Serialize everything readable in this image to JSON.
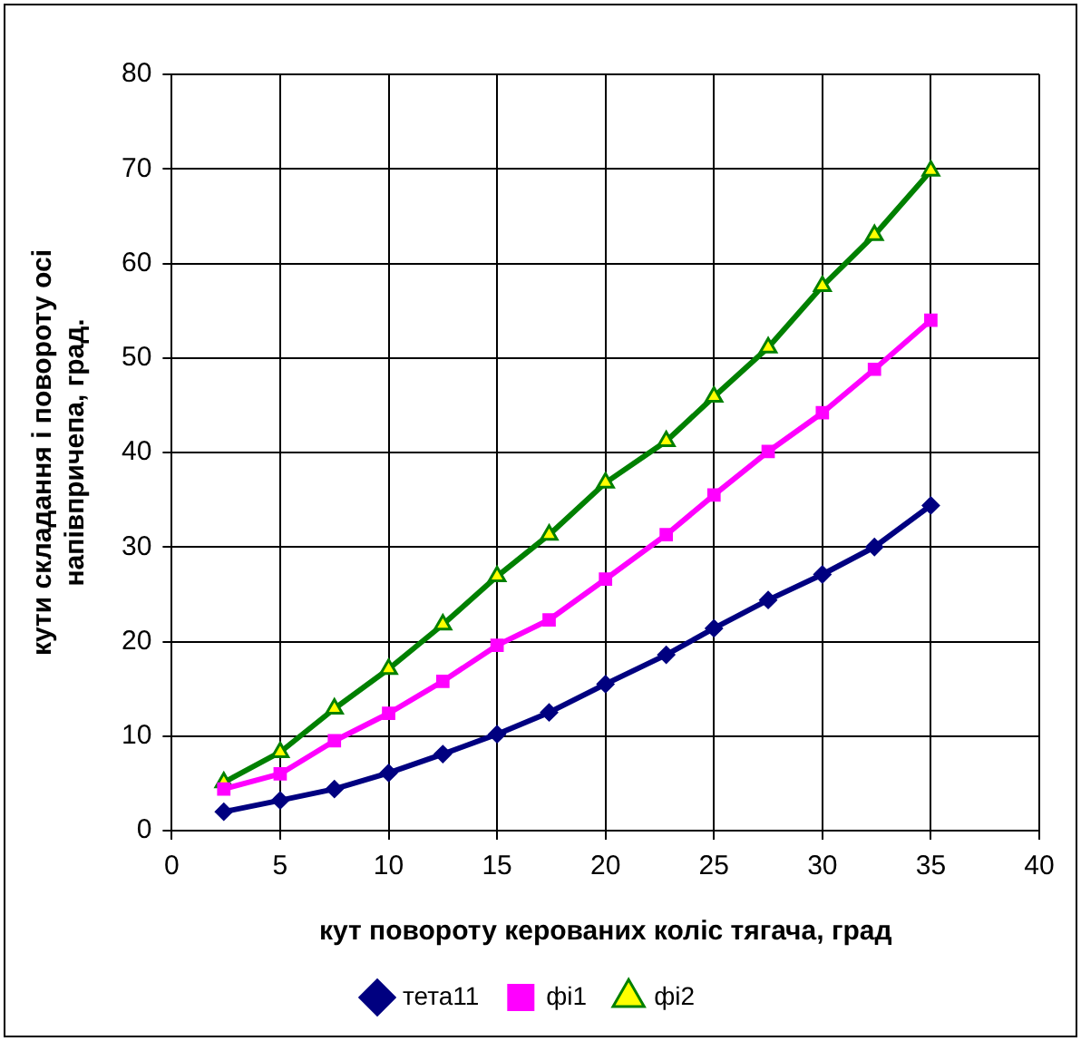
{
  "chart_data": {
    "type": "line",
    "xlabel": "кут повороту керованих коліс тягача, град",
    "ylabel": "кути складання і повороту осі\nнапівпричепа, град.",
    "x": [
      2.4,
      5,
      7.5,
      10,
      12.5,
      15,
      17.4,
      20,
      22.8,
      25,
      27.5,
      30,
      32.4,
      35
    ],
    "xlim": [
      0,
      40
    ],
    "xticks": [
      0,
      5,
      10,
      15,
      20,
      25,
      30,
      35,
      40
    ],
    "ylim": [
      0,
      80
    ],
    "yticks": [
      0,
      10,
      20,
      30,
      40,
      50,
      60,
      70,
      80
    ],
    "grid": true,
    "legend": "bottom",
    "line_style": "solid",
    "series": [
      {
        "name": "тета11",
        "color": "#000080",
        "marker": "diamond",
        "values": [
          2.0,
          3.2,
          4.4,
          6.1,
          8.1,
          10.2,
          12.5,
          15.5,
          18.6,
          21.4,
          24.4,
          27.1,
          30.0,
          34.4
        ]
      },
      {
        "name": "фі1",
        "color": "#ff00ff",
        "marker": "square",
        "values": [
          4.4,
          6.0,
          9.5,
          12.4,
          15.8,
          19.6,
          22.3,
          26.6,
          31.3,
          35.5,
          40.1,
          44.2,
          48.8,
          54.0
        ]
      },
      {
        "name": "фі2",
        "color": "#008000",
        "marker": "triangle",
        "values": [
          5.1,
          8.3,
          12.9,
          17.1,
          21.8,
          26.9,
          31.3,
          36.8,
          41.2,
          45.9,
          51.1,
          57.6,
          63.0,
          69.8
        ]
      }
    ]
  }
}
